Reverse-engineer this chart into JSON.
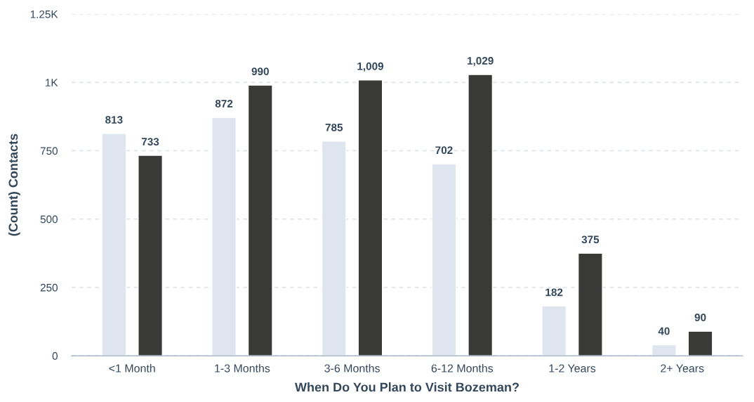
{
  "chart_data": {
    "type": "bar",
    "xlabel": "When Do You Plan to Visit Bozeman?",
    "ylabel": "(Count) Contacts",
    "categories": [
      "<1 Month",
      "1-3 Months",
      "3-6 Months",
      "6-12 Months",
      "1-2 Years",
      "2+ Years"
    ],
    "series": [
      {
        "color": "#dfe5ee",
        "values": [
          813,
          872,
          785,
          702,
          182,
          40
        ],
        "value_labels": [
          "813",
          "872",
          "785",
          "702",
          "182",
          "40"
        ]
      },
      {
        "color": "#393a37",
        "values": [
          733,
          990,
          1009,
          1029,
          375,
          90
        ],
        "value_labels": [
          "733",
          "990",
          "1,009",
          "1,029",
          "375",
          "90"
        ]
      }
    ],
    "ylim": [
      0,
      1250
    ],
    "yticks": [
      0,
      250,
      500,
      750,
      {
        "value": 1000,
        "label": "1K"
      },
      {
        "value": 1250,
        "label": "1.25K"
      }
    ],
    "grid": "y",
    "legend": false
  }
}
